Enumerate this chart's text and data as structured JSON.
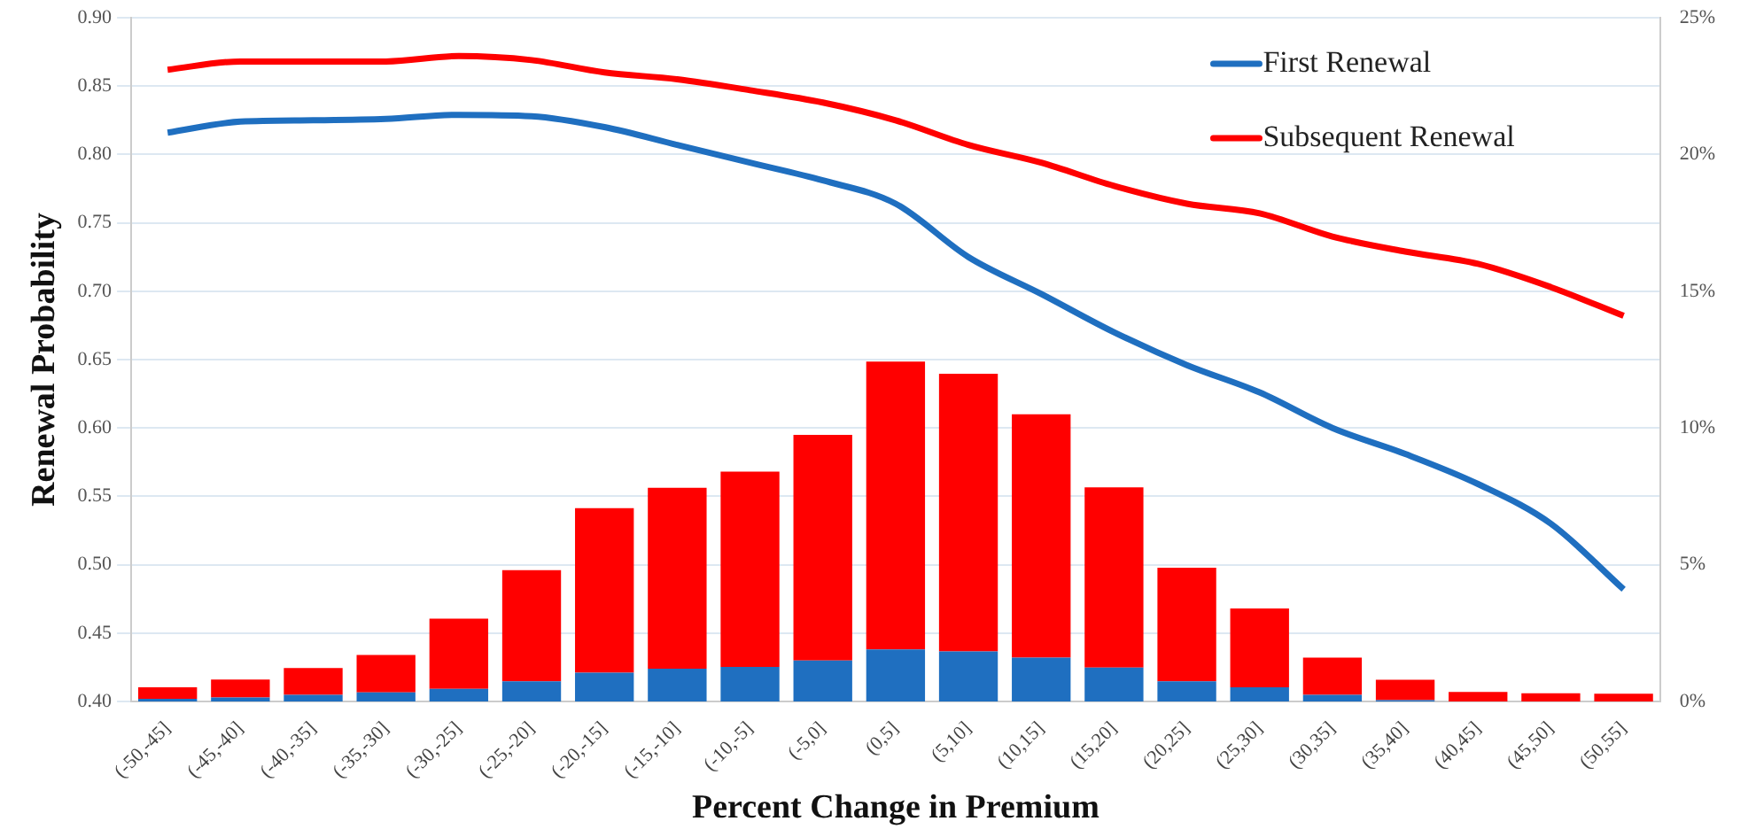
{
  "chart_data": {
    "type": "bar",
    "xlabel": "Percent Change in Premium",
    "ylabel": "Renewal Probability",
    "categories": [
      "(-50,-45]",
      "(-45,-40]",
      "(-40,-35]",
      "(-35,-30]",
      "(-30,-25]",
      "(-25,-20]",
      "(-20,-15]",
      "(-15,-10]",
      "(-10,-5]",
      "(-5,0]",
      "(0,5]",
      "(5,10]",
      "(10,15]",
      "(15,20]",
      "(20,25]",
      "(25,30]",
      "(30,35]",
      "(35,40]",
      "(40,45]",
      "(45,50]",
      "(50,55]"
    ],
    "stacked": true,
    "series": [
      {
        "axis": "y2",
        "color": "#1f6fc0",
        "values": [
          0.1,
          0.15,
          0.24,
          0.33,
          0.46,
          0.74,
          1.05,
          1.2,
          1.26,
          1.5,
          1.9,
          1.83,
          1.6,
          1.24,
          0.74,
          0.52,
          0.24,
          0.05,
          0,
          0,
          0
        ]
      },
      {
        "axis": "y2",
        "color": "#ff0000",
        "values": [
          0.42,
          0.65,
          0.98,
          1.37,
          2.57,
          4.06,
          6.02,
          6.61,
          7.14,
          8.25,
          10.53,
          10.15,
          8.9,
          6.59,
          4.15,
          2.88,
          1.36,
          0.74,
          0.35,
          0.3,
          0.28
        ]
      },
      {
        "type": "line",
        "axis": "y",
        "name": "First Renewal",
        "color": "#1f6fc0",
        "values": [
          0.816,
          0.824,
          0.825,
          0.826,
          0.829,
          0.828,
          0.82,
          0.807,
          0.794,
          0.781,
          0.764,
          0.725,
          0.698,
          0.67,
          0.646,
          0.626,
          0.6,
          0.581,
          0.559,
          0.53,
          0.482
        ]
      },
      {
        "type": "line",
        "axis": "y",
        "name": "Subsequent Renewal",
        "color": "#ff0000",
        "values": [
          0.862,
          0.868,
          0.868,
          0.868,
          0.872,
          0.869,
          0.86,
          0.855,
          0.847,
          0.838,
          0.825,
          0.807,
          0.794,
          0.777,
          0.764,
          0.757,
          0.74,
          0.729,
          0.72,
          0.703,
          0.682
        ]
      }
    ],
    "ylim": [
      0.4,
      0.9
    ],
    "yticks": [
      {
        "value": 0.4,
        "label": "0.40"
      },
      {
        "value": 0.45,
        "label": "0.45"
      },
      {
        "value": 0.5,
        "label": "0.50"
      },
      {
        "value": 0.55,
        "label": "0.55"
      },
      {
        "value": 0.6,
        "label": "0.60"
      },
      {
        "value": 0.65,
        "label": "0.65"
      },
      {
        "value": 0.7,
        "label": "0.70"
      },
      {
        "value": 0.75,
        "label": "0.75"
      },
      {
        "value": 0.8,
        "label": "0.80"
      },
      {
        "value": 0.85,
        "label": "0.85"
      },
      {
        "value": 0.9,
        "label": "0.90"
      }
    ],
    "y2lim": [
      0,
      25
    ],
    "y2ticks": [
      {
        "value": 0,
        "label": "0%"
      },
      {
        "value": 5,
        "label": "5%"
      },
      {
        "value": 10,
        "label": "10%"
      },
      {
        "value": 15,
        "label": "15%"
      },
      {
        "value": 20,
        "label": "20%"
      },
      {
        "value": 25,
        "label": "25%"
      }
    ],
    "grid": "y",
    "legend": "top right",
    "marker": "none",
    "line_style": "solid"
  }
}
